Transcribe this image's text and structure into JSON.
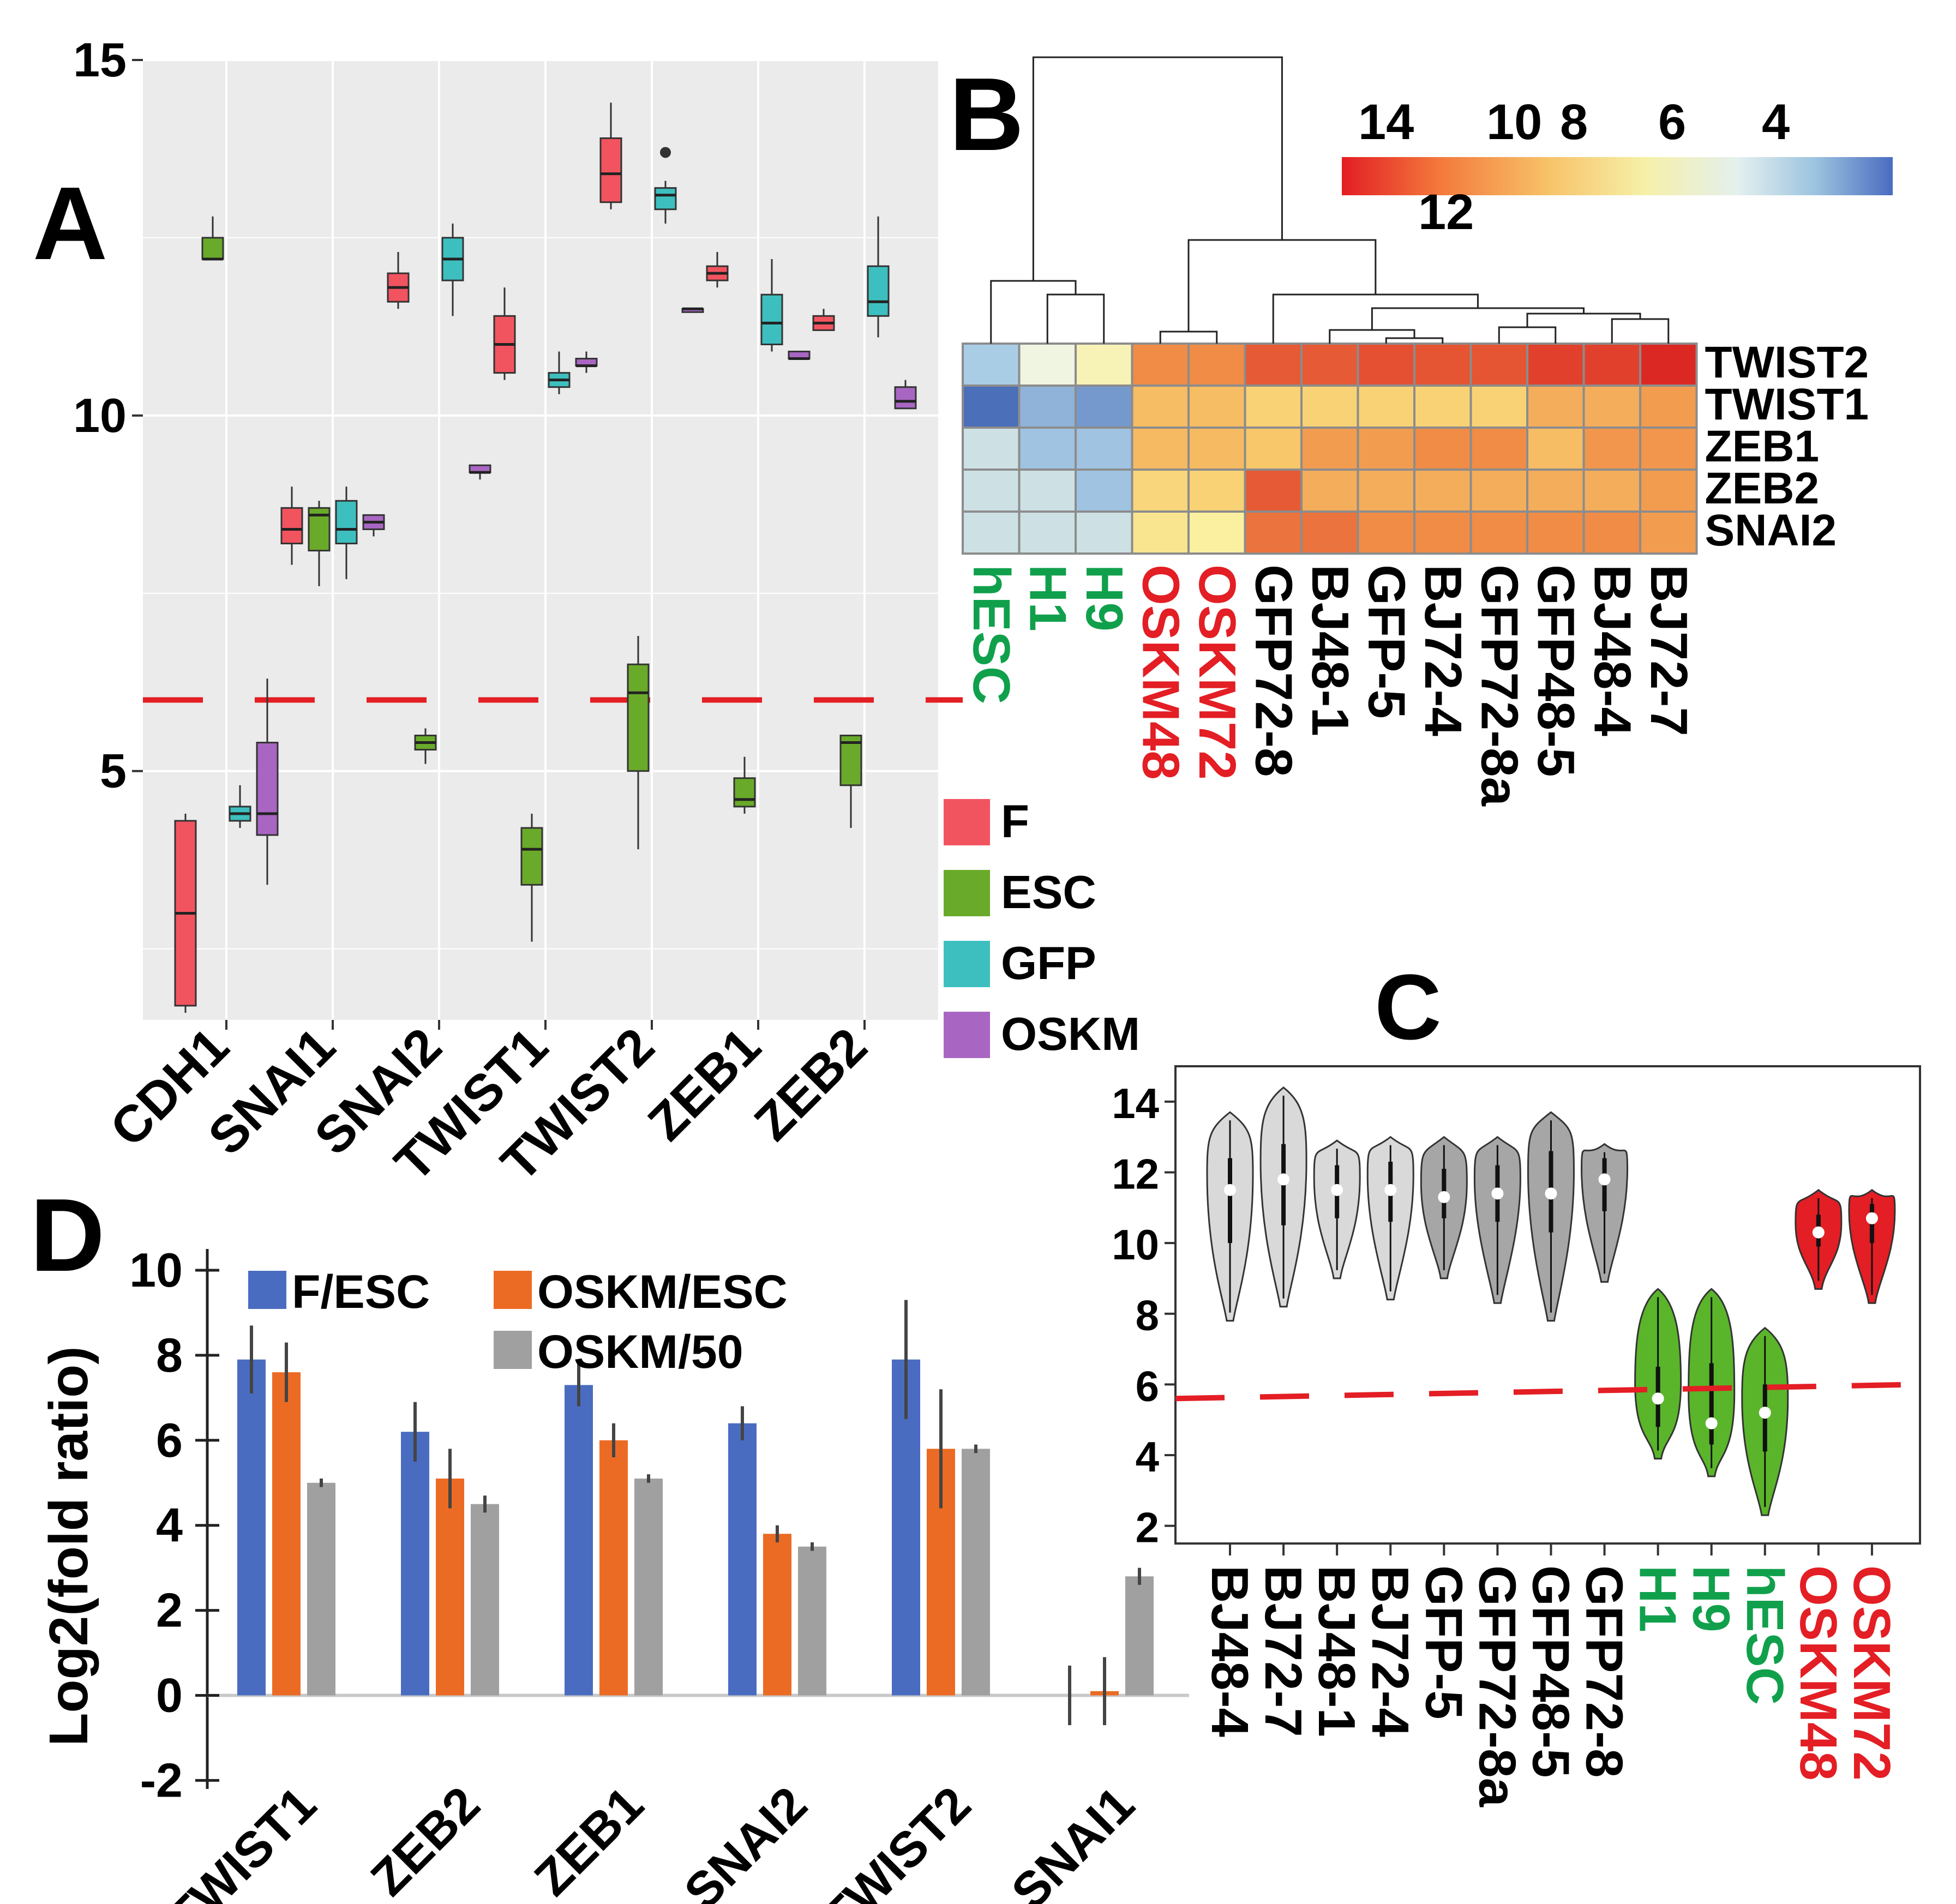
{
  "colors": {
    "F": "#f2545f",
    "ESC": "#6aaa2a",
    "GFP": "#3ebfbf",
    "OSKM": "#a866c2",
    "red": "#e31e24",
    "green": "#10a04c",
    "blue": "#4a6cc0",
    "orange": "#eb6b24",
    "gray": "#a0a0a0",
    "panel_bg": "#ebebeb",
    "black": "#000000"
  },
  "chart_data": [
    {
      "panel": "A",
      "type": "box",
      "ylim": [
        1.5,
        15
      ],
      "yticks": [
        5,
        10,
        15
      ],
      "categories": [
        "CDH1",
        "SNAI1",
        "SNAI2",
        "TWIST1",
        "TWIST2",
        "ZEB1",
        "ZEB2"
      ],
      "groups": [
        "F",
        "ESC",
        "GFP",
        "OSKM"
      ],
      "legend": [
        {
          "key": "F",
          "label": "F"
        },
        {
          "key": "ESC",
          "label": "ESC"
        },
        {
          "key": "GFP",
          "label": "GFP"
        },
        {
          "key": "OSKM",
          "label": "OSKM"
        }
      ],
      "threshold": 6,
      "boxes": [
        {
          "cat": 0,
          "group": "F",
          "min": 1.6,
          "q1": 1.7,
          "med": 3.0,
          "q3": 4.3,
          "max": 4.4
        },
        {
          "cat": 0,
          "group": "ESC",
          "min": 12.2,
          "q1": 12.2,
          "med": 12.2,
          "q3": 12.5,
          "max": 12.8
        },
        {
          "cat": 0,
          "group": "GFP",
          "min": 4.2,
          "q1": 4.3,
          "med": 4.4,
          "q3": 4.5,
          "max": 4.8
        },
        {
          "cat": 0,
          "group": "OSKM",
          "min": 3.4,
          "q1": 4.1,
          "med": 4.4,
          "q3": 5.4,
          "max": 6.3
        },
        {
          "cat": 1,
          "group": "F",
          "min": 7.9,
          "q1": 8.2,
          "med": 8.4,
          "q3": 8.7,
          "max": 9.0
        },
        {
          "cat": 1,
          "group": "ESC",
          "min": 7.6,
          "q1": 8.1,
          "med": 8.6,
          "q3": 8.7,
          "max": 8.8
        },
        {
          "cat": 1,
          "group": "GFP",
          "min": 7.7,
          "q1": 8.2,
          "med": 8.4,
          "q3": 8.8,
          "max": 9.0
        },
        {
          "cat": 1,
          "group": "OSKM",
          "min": 8.3,
          "q1": 8.4,
          "med": 8.5,
          "q3": 8.6,
          "max": 8.6
        },
        {
          "cat": 2,
          "group": "F",
          "min": 11.5,
          "q1": 11.6,
          "med": 11.8,
          "q3": 12.0,
          "max": 12.3
        },
        {
          "cat": 2,
          "group": "ESC",
          "min": 5.1,
          "q1": 5.3,
          "med": 5.4,
          "q3": 5.5,
          "max": 5.6
        },
        {
          "cat": 2,
          "group": "GFP",
          "min": 11.4,
          "q1": 11.9,
          "med": 12.2,
          "q3": 12.5,
          "max": 12.7
        },
        {
          "cat": 2,
          "group": "OSKM",
          "min": 9.1,
          "q1": 9.2,
          "med": 9.2,
          "q3": 9.3,
          "max": 9.3
        },
        {
          "cat": 3,
          "group": "F",
          "min": 10.5,
          "q1": 10.6,
          "med": 11.0,
          "q3": 11.4,
          "max": 11.8
        },
        {
          "cat": 3,
          "group": "ESC",
          "min": 2.6,
          "q1": 3.4,
          "med": 3.9,
          "q3": 4.2,
          "max": 4.4
        },
        {
          "cat": 3,
          "group": "GFP",
          "min": 10.3,
          "q1": 10.4,
          "med": 10.5,
          "q3": 10.6,
          "max": 10.9
        },
        {
          "cat": 3,
          "group": "OSKM",
          "min": 10.6,
          "q1": 10.7,
          "med": 10.7,
          "q3": 10.8,
          "max": 10.9
        },
        {
          "cat": 4,
          "group": "F",
          "min": 12.9,
          "q1": 13.0,
          "med": 13.4,
          "q3": 13.9,
          "max": 14.4
        },
        {
          "cat": 4,
          "group": "ESC",
          "min": 3.9,
          "q1": 5.0,
          "med": 6.1,
          "q3": 6.5,
          "max": 6.9
        },
        {
          "cat": 4,
          "group": "GFP",
          "min": 12.7,
          "q1": 12.9,
          "med": 13.1,
          "q3": 13.2,
          "max": 13.3,
          "outlier": 13.7
        },
        {
          "cat": 4,
          "group": "OSKM",
          "min": 11.5,
          "q1": 11.5,
          "med": 11.5,
          "q3": 11.5,
          "max": 11.5
        },
        {
          "cat": 5,
          "group": "F",
          "min": 11.8,
          "q1": 11.9,
          "med": 12.0,
          "q3": 12.1,
          "max": 12.3
        },
        {
          "cat": 5,
          "group": "ESC",
          "min": 4.4,
          "q1": 4.5,
          "med": 4.6,
          "q3": 4.9,
          "max": 5.2
        },
        {
          "cat": 5,
          "group": "GFP",
          "min": 10.9,
          "q1": 11.0,
          "med": 11.3,
          "q3": 11.7,
          "max": 12.2
        },
        {
          "cat": 5,
          "group": "OSKM",
          "min": 10.8,
          "q1": 10.8,
          "med": 10.8,
          "q3": 10.9,
          "max": 10.9
        },
        {
          "cat": 6,
          "group": "F",
          "min": 11.2,
          "q1": 11.2,
          "med": 11.3,
          "q3": 11.4,
          "max": 11.5
        },
        {
          "cat": 6,
          "group": "ESC",
          "min": 4.2,
          "q1": 4.8,
          "med": 5.4,
          "q3": 5.5,
          "max": 5.5
        },
        {
          "cat": 6,
          "group": "GFP",
          "min": 11.1,
          "q1": 11.4,
          "med": 11.6,
          "q3": 12.1,
          "max": 12.8
        },
        {
          "cat": 6,
          "group": "OSKM",
          "min": 10.1,
          "q1": 10.1,
          "med": 10.2,
          "q3": 10.4,
          "max": 10.5
        }
      ]
    },
    {
      "panel": "B",
      "type": "heatmap",
      "rows": [
        "TWIST2",
        "TWIST1",
        "ZEB1",
        "ZEB2",
        "SNAI2"
      ],
      "columns": [
        "hESC",
        "H1",
        "H9",
        "OSKM48",
        "OSKM72",
        "GFP72-8",
        "BJ48-1",
        "GFP-5",
        "BJ72-4",
        "GFP72-8a",
        "GFP48-5",
        "BJ48-4",
        "BJ72-7"
      ],
      "column_groups": [
        "ESC",
        "ESC",
        "ESC",
        "OSKM",
        "OSKM",
        "BJ",
        "BJ",
        "BJ",
        "BJ",
        "BJ",
        "BJ",
        "BJ",
        "BJ"
      ],
      "values": [
        [
          5.0,
          7.0,
          8.0,
          12.0,
          12.0,
          13.0,
          13.0,
          13.2,
          13.1,
          13.1,
          13.5,
          13.5,
          14.0
        ],
        [
          3.2,
          4.5,
          4.0,
          10.5,
          10.5,
          9.8,
          9.8,
          9.8,
          9.8,
          9.8,
          11.0,
          11.0,
          11.5
        ],
        [
          6.0,
          4.8,
          4.8,
          10.6,
          10.6,
          10.2,
          11.5,
          11.5,
          12.0,
          12.0,
          10.5,
          11.7,
          11.7
        ],
        [
          6.0,
          6.0,
          4.8,
          9.6,
          9.8,
          13.0,
          11.0,
          11.0,
          11.0,
          11.0,
          11.0,
          11.0,
          11.5
        ],
        [
          6.0,
          6.0,
          6.0,
          9.0,
          8.5,
          12.5,
          12.5,
          12.0,
          12.0,
          12.0,
          12.0,
          12.0,
          11.5
        ]
      ],
      "scale_labels": [
        "14",
        "12",
        "10",
        "8",
        "6",
        "4"
      ]
    },
    {
      "panel": "C",
      "type": "violin",
      "ylim": [
        1.5,
        15
      ],
      "yticks": [
        2,
        4,
        6,
        8,
        10,
        12,
        14
      ],
      "categories": [
        "BJ48-4",
        "BJ72-7",
        "BJ48-1",
        "BJ72-4",
        "GFP-5",
        "GFP72-8a",
        "GFP48-5",
        "GFP72-8",
        "H1",
        "H9",
        "hESC",
        "OSKM48",
        "OSKM72"
      ],
      "category_colors": [
        "black",
        "black",
        "black",
        "black",
        "black",
        "black",
        "black",
        "black",
        "green",
        "green",
        "green",
        "red",
        "red"
      ],
      "violins": [
        {
          "min": 7.8,
          "max": 13.7,
          "med": 11.5,
          "q1": 10.0,
          "q3": 12.4,
          "shade": "light"
        },
        {
          "min": 8.2,
          "max": 14.4,
          "med": 11.8,
          "q1": 10.5,
          "q3": 12.8,
          "shade": "light"
        },
        {
          "min": 9.0,
          "max": 12.9,
          "med": 11.5,
          "q1": 10.7,
          "q3": 12.2,
          "shade": "light"
        },
        {
          "min": 8.4,
          "max": 13.0,
          "med": 11.5,
          "q1": 10.6,
          "q3": 12.3,
          "shade": "light"
        },
        {
          "min": 9.0,
          "max": 13.0,
          "med": 11.3,
          "q1": 10.7,
          "q3": 12.1,
          "shade": "dark"
        },
        {
          "min": 8.3,
          "max": 13.0,
          "med": 11.4,
          "q1": 10.6,
          "q3": 12.2,
          "shade": "dark"
        },
        {
          "min": 7.8,
          "max": 13.7,
          "med": 11.4,
          "q1": 10.3,
          "q3": 12.6,
          "shade": "dark"
        },
        {
          "min": 8.9,
          "max": 12.8,
          "med": 11.8,
          "q1": 10.9,
          "q3": 12.4,
          "shade": "dark"
        },
        {
          "min": 3.9,
          "max": 8.7,
          "med": 5.6,
          "q1": 4.8,
          "q3": 6.5,
          "shade": "green"
        },
        {
          "min": 3.4,
          "max": 8.7,
          "med": 4.9,
          "q1": 4.3,
          "q3": 6.6,
          "shade": "green"
        },
        {
          "min": 2.3,
          "max": 7.6,
          "med": 5.2,
          "q1": 4.1,
          "q3": 6.0,
          "shade": "green"
        },
        {
          "min": 8.7,
          "max": 11.5,
          "med": 10.3,
          "q1": 9.9,
          "q3": 10.8,
          "shade": "red"
        },
        {
          "min": 8.3,
          "max": 11.5,
          "med": 10.7,
          "q1": 10.0,
          "q3": 11.1,
          "shade": "red"
        }
      ],
      "threshold_line": {
        "from": [
          0.5,
          5.6
        ],
        "to": [
          13.5,
          6.0
        ]
      }
    },
    {
      "panel": "D",
      "type": "bar",
      "ylabel": "Log2(fold ratio)",
      "ylim": [
        -2.2,
        10.5
      ],
      "yticks": [
        -2,
        0,
        2,
        4,
        6,
        8,
        10
      ],
      "categories": [
        "TWIST1",
        "ZEB2",
        "ZEB1",
        "SNAI2",
        "TWIST2",
        "SNAI1"
      ],
      "series": [
        {
          "name": "F/ESC",
          "color": "blue",
          "values": [
            7.9,
            6.2,
            7.3,
            6.4,
            7.9,
            0
          ],
          "err": [
            0.8,
            0.7,
            0.5,
            0.4,
            1.4,
            0.7
          ]
        },
        {
          "name": "OSKM/ESC",
          "color": "orange",
          "values": [
            7.6,
            5.1,
            6.0,
            3.8,
            5.8,
            0.1
          ],
          "err": [
            0.7,
            0.7,
            0.4,
            0.2,
            1.4,
            0.8
          ]
        },
        {
          "name": "OSKM/50",
          "color": "gray",
          "values": [
            5.0,
            4.5,
            5.1,
            3.5,
            5.8,
            2.8
          ],
          "err": [
            0.1,
            0.2,
            0.1,
            0.1,
            0.1,
            0.2
          ]
        }
      ]
    }
  ],
  "panels": {
    "A": {
      "letter": "A",
      "yticks": [
        "5",
        "10",
        "15"
      ],
      "xlabels": [
        "CDH1",
        "SNAI1",
        "SNAI2",
        "TWIST1",
        "TWIST2",
        "ZEB1",
        "ZEB2"
      ],
      "legend": [
        "F",
        "ESC",
        "GFP",
        "OSKM"
      ]
    },
    "B": {
      "letter": "B",
      "scale": [
        "14",
        "12",
        "10",
        "8",
        "6",
        "4"
      ],
      "rows": [
        "TWIST2",
        "TWIST1",
        "ZEB1",
        "ZEB2",
        "SNAI2"
      ],
      "cols": [
        "hESC",
        "H1",
        "H9",
        "OSKM48",
        "OSKM72",
        "GFP72-8",
        "BJ48-1",
        "GFP-5",
        "BJ72-4",
        "GFP72-8a",
        "GFP48-5",
        "BJ48-4",
        "BJ72-7"
      ]
    },
    "C": {
      "letter": "C",
      "yticks": [
        "2",
        "4",
        "6",
        "8",
        "10",
        "12",
        "14"
      ],
      "xlabels": [
        "BJ48-4",
        "BJ72-7",
        "BJ48-1",
        "BJ72-4",
        "GFP-5",
        "GFP72-8a",
        "GFP48-5",
        "GFP72-8",
        "H1",
        "H9",
        "hESC",
        "OSKM48",
        "OSKM72"
      ]
    },
    "D": {
      "letter": "D",
      "ylabel": "Log2(fold ratio)",
      "yticks": [
        "-2",
        "0",
        "2",
        "4",
        "6",
        "8",
        "10"
      ],
      "xlabels": [
        "TWIST1",
        "ZEB2",
        "ZEB1",
        "SNAI2",
        "TWIST2",
        "SNAI1"
      ],
      "legend": [
        "F/ESC",
        "OSKM/ESC",
        "OSKM/50"
      ]
    }
  }
}
